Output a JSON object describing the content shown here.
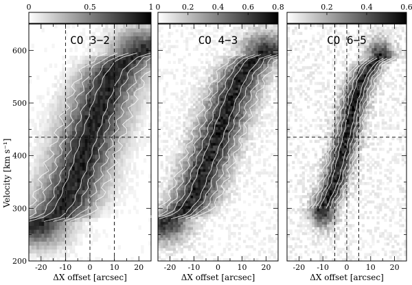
{
  "chart_data": [
    {
      "type": "heatmap",
      "title": "CO 3−2",
      "xlabel": "ΔX offset [arcsec]",
      "ylabel": "Velocity [km s⁻¹]",
      "xlim": [
        -25,
        25
      ],
      "ylim": [
        200,
        650
      ],
      "xticks": [
        -20,
        -10,
        0,
        10,
        20
      ],
      "yticks": [
        200,
        300,
        400,
        500,
        600
      ],
      "colorbar": {
        "min": 0,
        "max": 1.0,
        "ticks": [
          0,
          0.5,
          1
        ],
        "tick_labels": [
          "0",
          "0.5",
          "1"
        ]
      },
      "vlines": [
        -10,
        0,
        10
      ],
      "hline": 435,
      "ridge": [
        [
          -22,
          275
        ],
        [
          -14,
          285
        ],
        [
          -10,
          310
        ],
        [
          -5,
          370
        ],
        [
          0,
          440
        ],
        [
          5,
          510
        ],
        [
          10,
          560
        ],
        [
          15,
          585
        ],
        [
          22,
          595
        ]
      ],
      "ridge_width": 9,
      "v_sigma": 45,
      "peak_value": 1.0,
      "noise": 0.05
    },
    {
      "type": "heatmap",
      "title": "CO 4−3",
      "xlabel": "ΔX offset [arcsec]",
      "ylabel": "",
      "xlim": [
        -25,
        25
      ],
      "ylim": [
        200,
        650
      ],
      "xticks": [
        -20,
        -10,
        0,
        10,
        20
      ],
      "yticks": [
        200,
        300,
        400,
        500,
        600
      ],
      "colorbar": {
        "min": 0,
        "max": 0.8,
        "ticks": [
          0,
          0.2,
          0.4,
          0.6,
          0.8
        ],
        "tick_labels": [
          "0",
          "0.2",
          "0.4",
          "0.6",
          "0.8"
        ]
      },
      "vlines": [],
      "hline": null,
      "ridge": [
        [
          -22,
          280
        ],
        [
          -15,
          290
        ],
        [
          -10,
          320
        ],
        [
          -5,
          380
        ],
        [
          0,
          440
        ],
        [
          5,
          505
        ],
        [
          10,
          555
        ],
        [
          15,
          585
        ],
        [
          20,
          592
        ]
      ],
      "ridge_width": 7,
      "v_sigma": 42,
      "peak_value": 0.8,
      "noise": 0.1
    },
    {
      "type": "heatmap",
      "title": "CO 6−5",
      "xlabel": "ΔX offset [arcsec]",
      "ylabel": "",
      "xlim": [
        -25,
        25
      ],
      "ylim": [
        200,
        650
      ],
      "xticks": [
        -20,
        -10,
        0,
        10,
        20
      ],
      "yticks": [
        200,
        300,
        400,
        500,
        600
      ],
      "colorbar": {
        "min": 0,
        "max": 0.6,
        "ticks": [
          0.2,
          0.4,
          0.6
        ],
        "tick_labels": [
          "0.2",
          "0.4",
          "0.6"
        ]
      },
      "vlines": [
        -5,
        0,
        5
      ],
      "hline": 435,
      "ridge": [
        [
          -10,
          300
        ],
        [
          -5,
          350
        ],
        [
          0,
          440
        ],
        [
          3,
          500
        ],
        [
          6,
          545
        ],
        [
          10,
          575
        ],
        [
          14,
          585
        ]
      ],
      "ridge_width": 4,
      "v_sigma": 35,
      "peak_value": 0.6,
      "noise": 0.14
    }
  ]
}
